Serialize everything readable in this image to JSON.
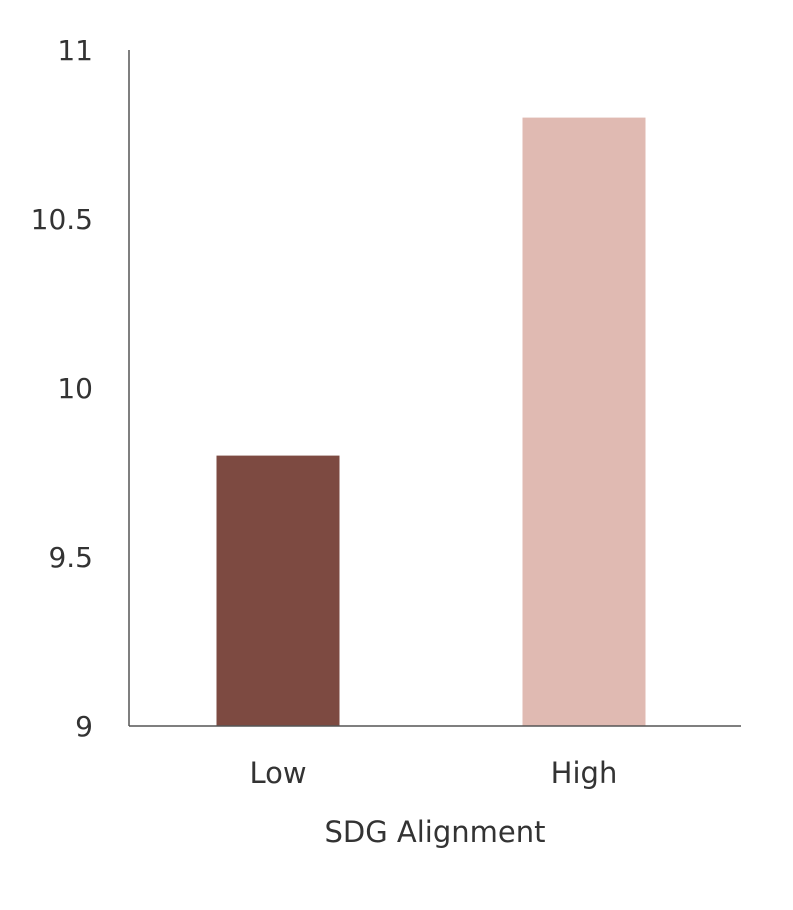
{
  "chart_data": {
    "type": "bar",
    "categories": [
      "Low",
      "High"
    ],
    "values": [
      9.8,
      10.8
    ],
    "colors": [
      "#7d4a41",
      "#e0bab2"
    ],
    "xlabel": "SDG Alignment",
    "ylabel": "",
    "ylim": [
      9,
      11
    ],
    "yticks": [
      9,
      9.5,
      10,
      10.5,
      11
    ],
    "ytick_labels": [
      "9",
      "9.5",
      "10",
      "10.5",
      "11"
    ],
    "grid": false,
    "legend": "none"
  }
}
